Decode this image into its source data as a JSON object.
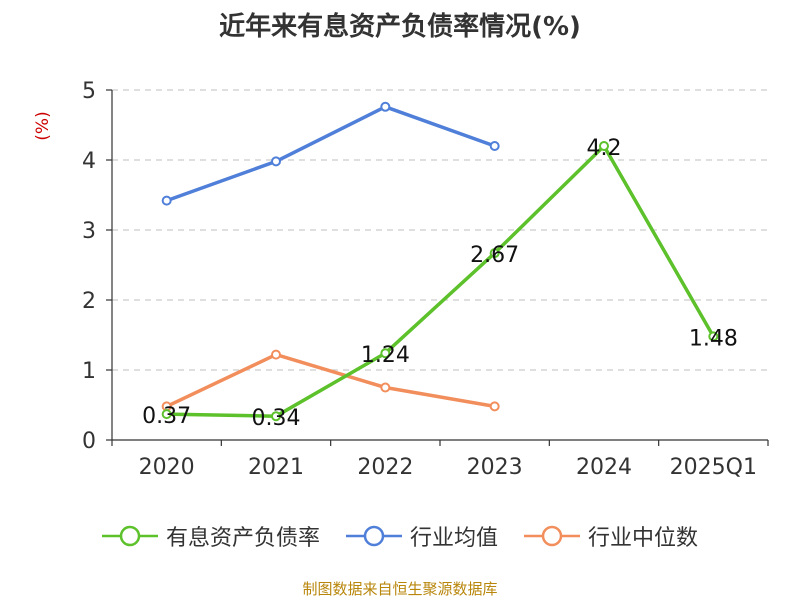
{
  "chart_data": {
    "type": "line",
    "title": "近年来有息资产负债率情况(%)",
    "ylabel": "(%)",
    "xlabel": "",
    "categories": [
      "2020",
      "2021",
      "2022",
      "2023",
      "2024",
      "2025Q1"
    ],
    "ylim": [
      0,
      5
    ],
    "yticks": [
      "0",
      "1",
      "2",
      "3",
      "4",
      "5"
    ],
    "grid": true,
    "legend_position": "bottom",
    "series": [
      {
        "name": "有息资产负债率",
        "color": "#5cc12a",
        "values": [
          0.37,
          0.34,
          1.24,
          2.67,
          4.2,
          1.48
        ],
        "labels": [
          "0.37",
          "0.34",
          "1.24",
          "2.67",
          "4.2",
          "1.48"
        ]
      },
      {
        "name": "行业均值",
        "color": "#4f7fd9",
        "values": [
          3.42,
          3.98,
          4.76,
          4.2,
          null,
          null
        ]
      },
      {
        "name": "行业中位数",
        "color": "#f28e5c",
        "values": [
          0.48,
          1.22,
          0.75,
          0.48,
          null,
          null
        ]
      }
    ]
  },
  "footer": {
    "source": "制图数据来自恒生聚源数据库"
  }
}
